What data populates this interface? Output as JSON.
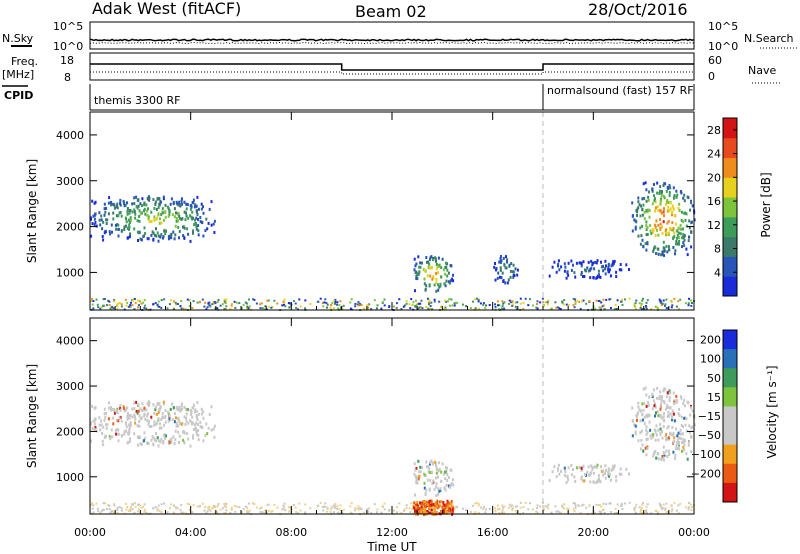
{
  "header": {
    "radar": "Adak West (fitACF)",
    "beam": "Beam 02",
    "date": "28/Oct/2016"
  },
  "noise_panel": {
    "left_label": "N.Sky",
    "right_label": "N.Search",
    "left_ticks": [
      "10^5",
      "10^0"
    ],
    "right_ticks": [
      "10^5",
      "10^0"
    ]
  },
  "freq_panel": {
    "left_label_line1": "Freq.",
    "left_label_line2": "[MHz]",
    "left_ticks": [
      "18",
      "8"
    ],
    "right_label": "Nave",
    "right_ticks": [
      "60",
      "0"
    ],
    "cpid_label": "CPID",
    "cpid_segments": [
      {
        "label": "themis 3300 RF",
        "start_hour": 0
      },
      {
        "label": "normalsound (fast) 157 RF",
        "start_hour": 18
      }
    ]
  },
  "colors": {
    "power": [
      "#1a2bd9",
      "#2855b8",
      "#3b7a6a",
      "#3d9c5a",
      "#7dc33c",
      "#e6d21e",
      "#f08c1e",
      "#e64a1e",
      "#d21414"
    ],
    "velocity_neg": [
      "#d21414",
      "#ea5a14",
      "#f0a01e",
      "#f0d28c"
    ],
    "velocity_zero": "#c8c8c8",
    "velocity_pos": [
      "#7dc33c",
      "#3d9c5a",
      "#2870b8",
      "#1a2bd9"
    ]
  },
  "chart_data": [
    {
      "type": "heatmap",
      "name": "power",
      "ylabel": "Slant Range [km]",
      "xlabel": "Time UT",
      "xlim": [
        0,
        24
      ],
      "ylim": [
        180,
        4500
      ],
      "x_ticks": [
        "00:00",
        "04:00",
        "08:00",
        "12:00",
        "16:00",
        "20:00",
        "00:00"
      ],
      "y_ticks": [
        1000,
        2000,
        3000,
        4000
      ],
      "colorbar": {
        "label": "Power [dB]",
        "ticks": [
          4,
          8,
          12,
          16,
          20,
          24,
          28
        ],
        "range": [
          0,
          30
        ]
      },
      "regions": [
        {
          "t": [
            0.0,
            5.0
          ],
          "r": [
            1700,
            2700
          ],
          "peak_db": 18
        },
        {
          "t": [
            12.8,
            14.4
          ],
          "r": [
            600,
            1400
          ],
          "peak_db": 24
        },
        {
          "t": [
            16.0,
            17.0
          ],
          "r": [
            800,
            1400
          ],
          "peak_db": 12
        },
        {
          "t": [
            18.2,
            21.5
          ],
          "r": [
            900,
            1300
          ],
          "peak_db": 8
        },
        {
          "t": [
            21.5,
            24.0
          ],
          "r": [
            1400,
            3000
          ],
          "peak_db": 26
        }
      ],
      "cpid_change_hour": 18
    },
    {
      "type": "heatmap",
      "name": "velocity",
      "ylabel": "Slant Range [km]",
      "xlabel": "Time UT",
      "xlim": [
        0,
        24
      ],
      "ylim": [
        180,
        4500
      ],
      "x_ticks": [
        "00:00",
        "04:00",
        "08:00",
        "12:00",
        "16:00",
        "20:00",
        "00:00"
      ],
      "y_ticks": [
        1000,
        2000,
        3000,
        4000
      ],
      "colorbar": {
        "label": "Velocity [m s⁻¹]",
        "ticks": [
          "200",
          "100",
          "50",
          "15",
          "−15",
          "−50",
          "−100",
          "−200"
        ]
      },
      "regions": [
        {
          "t": [
            0.0,
            5.0
          ],
          "r": [
            1700,
            2600
          ],
          "velocity": "near-zero"
        },
        {
          "t": [
            12.8,
            14.4
          ],
          "r": [
            500,
            1400
          ],
          "velocity": "near-zero"
        },
        {
          "t": [
            12.8,
            14.4
          ],
          "r": [
            200,
            500
          ],
          "velocity": "negative"
        },
        {
          "t": [
            21.5,
            24.0
          ],
          "r": [
            1400,
            2800
          ],
          "velocity": "near-zero"
        }
      ],
      "cpid_change_hour": 18
    }
  ]
}
